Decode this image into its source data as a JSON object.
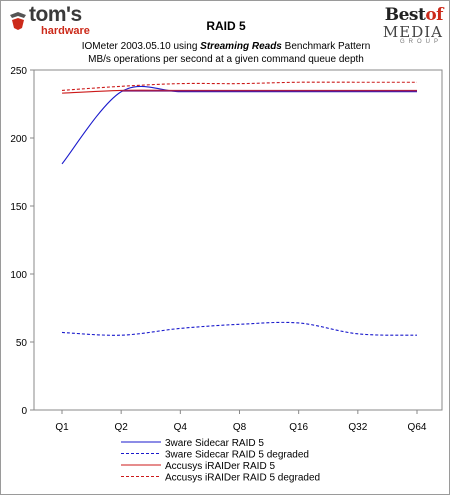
{
  "logos": {
    "toms_wordmark": "tom's",
    "toms_sub": "hardware",
    "bom_best": "Best",
    "bom_of": "of",
    "bom_media": "MEDIA",
    "bom_group": "GROUP"
  },
  "header": {
    "title": "RAID 5",
    "subtitle_pre": "IOMeter 2003.05.10 using ",
    "subtitle_emph": "Streaming Reads",
    "subtitle_post": " Benchmark Pattern",
    "subtitle_line2": "MB/s operations per second at a given command queue depth"
  },
  "colors": {
    "blue": "#1a1acc",
    "red": "#cc1a1a",
    "purple": "#7a1a7a",
    "axis": "#888888"
  },
  "chart_data": {
    "type": "line",
    "categories": [
      "Q1",
      "Q2",
      "Q4",
      "Q8",
      "Q16",
      "Q32",
      "Q64"
    ],
    "ylim": [
      0,
      250
    ],
    "yticks": [
      0,
      50,
      100,
      150,
      200,
      250
    ],
    "grid": false,
    "legend_position": "bottom",
    "series": [
      {
        "name": "3ware Sidecar RAID 5",
        "color": "#1a1acc",
        "dashed": false,
        "values": [
          181,
          234,
          234,
          234,
          234,
          234,
          234
        ]
      },
      {
        "name": "3ware Sidecar RAID 5 degraded",
        "color": "#1a1acc",
        "dashed": true,
        "values": [
          57,
          55,
          60,
          63,
          64,
          56,
          55
        ]
      },
      {
        "name": "Accusys iRAIDer RAID 5",
        "color": "#cc1a1a",
        "dashed": false,
        "values": [
          233,
          235,
          235,
          235,
          235,
          235,
          235
        ]
      },
      {
        "name": "Accusys iRAIDer RAID 5 degraded",
        "color": "#cc1a1a",
        "dashed": true,
        "values": [
          235,
          238,
          240,
          240,
          241,
          241,
          241
        ]
      }
    ]
  }
}
